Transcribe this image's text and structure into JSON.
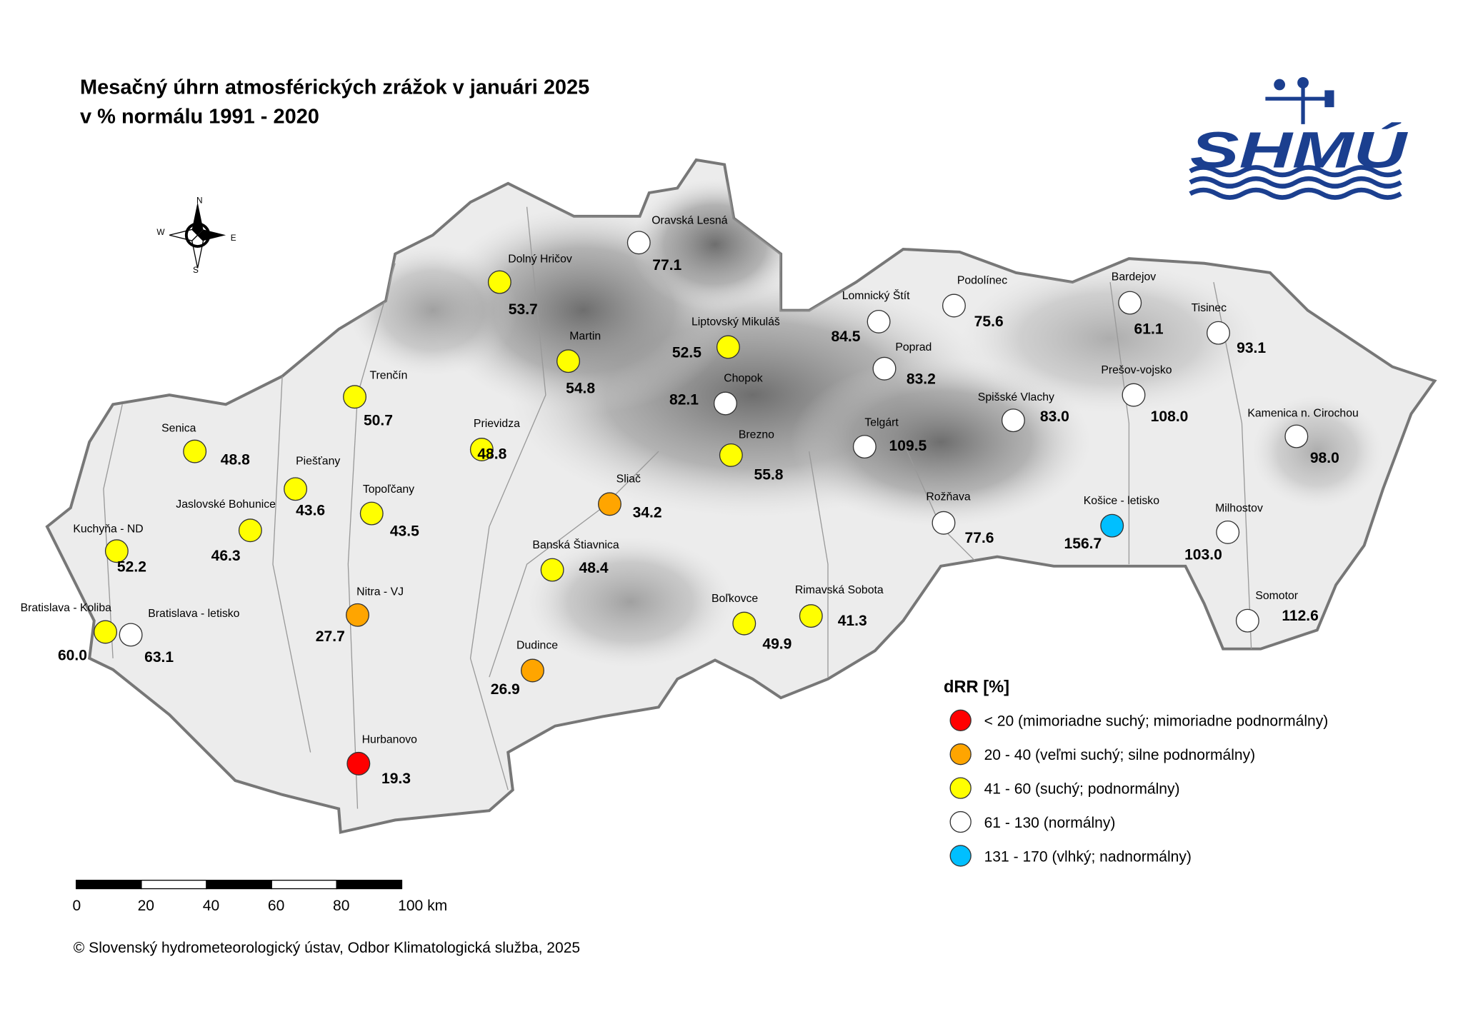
{
  "title": [
    "Mesačný úhrn atmosférických zrážok v januári 2025",
    "v % normálu 1991 - 2020"
  ],
  "logo": "SHMÚ",
  "compass": {
    "n": "N",
    "e": "E",
    "s": "S",
    "w": "W"
  },
  "stations": [
    {
      "name": "Oravská Lesná",
      "value": 77.1,
      "color": "#ffffff"
    },
    {
      "name": "Dolný Hričov",
      "value": 53.7,
      "color": "#ffff00"
    },
    {
      "name": "Martin",
      "value": 54.8,
      "color": "#ffff00"
    },
    {
      "name": "Liptovský Mikuláš",
      "value": 52.5,
      "color": "#ffff00"
    },
    {
      "name": "Chopok",
      "value": 82.1,
      "color": "#ffffff"
    },
    {
      "name": "Trenčín",
      "value": 50.7,
      "color": "#ffff00"
    },
    {
      "name": "Prievidza",
      "value": 48.8,
      "color": "#ffff00"
    },
    {
      "name": "Senica",
      "value": 48.8,
      "color": "#ffff00"
    },
    {
      "name": "Piešťany",
      "value": 43.6,
      "color": "#ffff00"
    },
    {
      "name": "Topoľčany",
      "value": 43.5,
      "color": "#ffff00"
    },
    {
      "name": "Jaslovské Bohunice",
      "value": 46.3,
      "color": "#ffff00"
    },
    {
      "name": "Kuchyňa - ND",
      "value": 52.2,
      "color": "#ffff00"
    },
    {
      "name": "Bratislava - Koliba",
      "value": 60,
      "value_label": "60.0",
      "color": "#ffff00"
    },
    {
      "name": "Bratislava - letisko",
      "value": 63.1,
      "color": "#ffffff"
    },
    {
      "name": "Nitra - VJ",
      "value": 27.7,
      "color": "#ffa500"
    },
    {
      "name": "Hurbanovo",
      "value": 19.3,
      "color": "#ff0000"
    },
    {
      "name": "Sliač",
      "value": 34.2,
      "color": "#ffa500"
    },
    {
      "name": "Banská Štiavnica",
      "value": 48.4,
      "color": "#ffff00"
    },
    {
      "name": "Dudince",
      "value": 26.9,
      "color": "#ffa500"
    },
    {
      "name": "Boľkovce",
      "value": 49.9,
      "color": "#ffff00"
    },
    {
      "name": "Rimavská Sobota",
      "value": 41.3,
      "color": "#ffff00"
    },
    {
      "name": "Brezno",
      "value": 55.8,
      "color": "#ffff00"
    },
    {
      "name": "Lomnický Štít",
      "value": 84.5,
      "color": "#ffffff"
    },
    {
      "name": "Podolínec",
      "value": 75.6,
      "color": "#ffffff"
    },
    {
      "name": "Poprad",
      "value": 83.2,
      "color": "#ffffff"
    },
    {
      "name": "Telgárt",
      "value": 109.5,
      "color": "#ffffff"
    },
    {
      "name": "Spišské Vlachy",
      "value": 83,
      "value_label": "83.0",
      "color": "#ffffff"
    },
    {
      "name": "Rožňava",
      "value": 77.6,
      "color": "#ffffff"
    },
    {
      "name": "Bardejov",
      "value": 61.1,
      "color": "#ffffff"
    },
    {
      "name": "Tisinec",
      "value": 93.1,
      "color": "#ffffff"
    },
    {
      "name": "Prešov-vojsko",
      "value": 108,
      "value_label": "108.0",
      "color": "#ffffff"
    },
    {
      "name": "Kamenica n. Cirochou",
      "value": 98,
      "value_label": "98.0",
      "color": "#ffffff"
    },
    {
      "name": "Košice - letisko",
      "value": 156.7,
      "color": "#00bfff"
    },
    {
      "name": "Milhostov",
      "value": 103,
      "value_label": "103.0",
      "color": "#ffffff"
    },
    {
      "name": "Somotor",
      "value": 112.6,
      "color": "#ffffff"
    }
  ],
  "legend": {
    "title": "dRR [%]",
    "items": [
      {
        "label": "< 20 (mimoriadne suchý; mimoriadne podnormálny)",
        "color": "#ff0000"
      },
      {
        "label": "20 - 40 (veľmi suchý; silne podnormálny)",
        "color": "#ffa500"
      },
      {
        "label": "41 - 60 (suchý; podnormálny)",
        "color": "#ffff00"
      },
      {
        "label": "61 - 130 (normálny)",
        "color": "#ffffff"
      },
      {
        "label": "131 - 170 (vlhký; nadnormálny)",
        "color": "#00bfff"
      }
    ]
  },
  "scale_bar": {
    "ticks": [
      0,
      20,
      40,
      60,
      80,
      {
        "value": 100,
        "label": "100 km"
      }
    ]
  },
  "footer": "© Slovenský hydrometeorologický ústav, Odbor Klimatologická služba, 2025"
}
